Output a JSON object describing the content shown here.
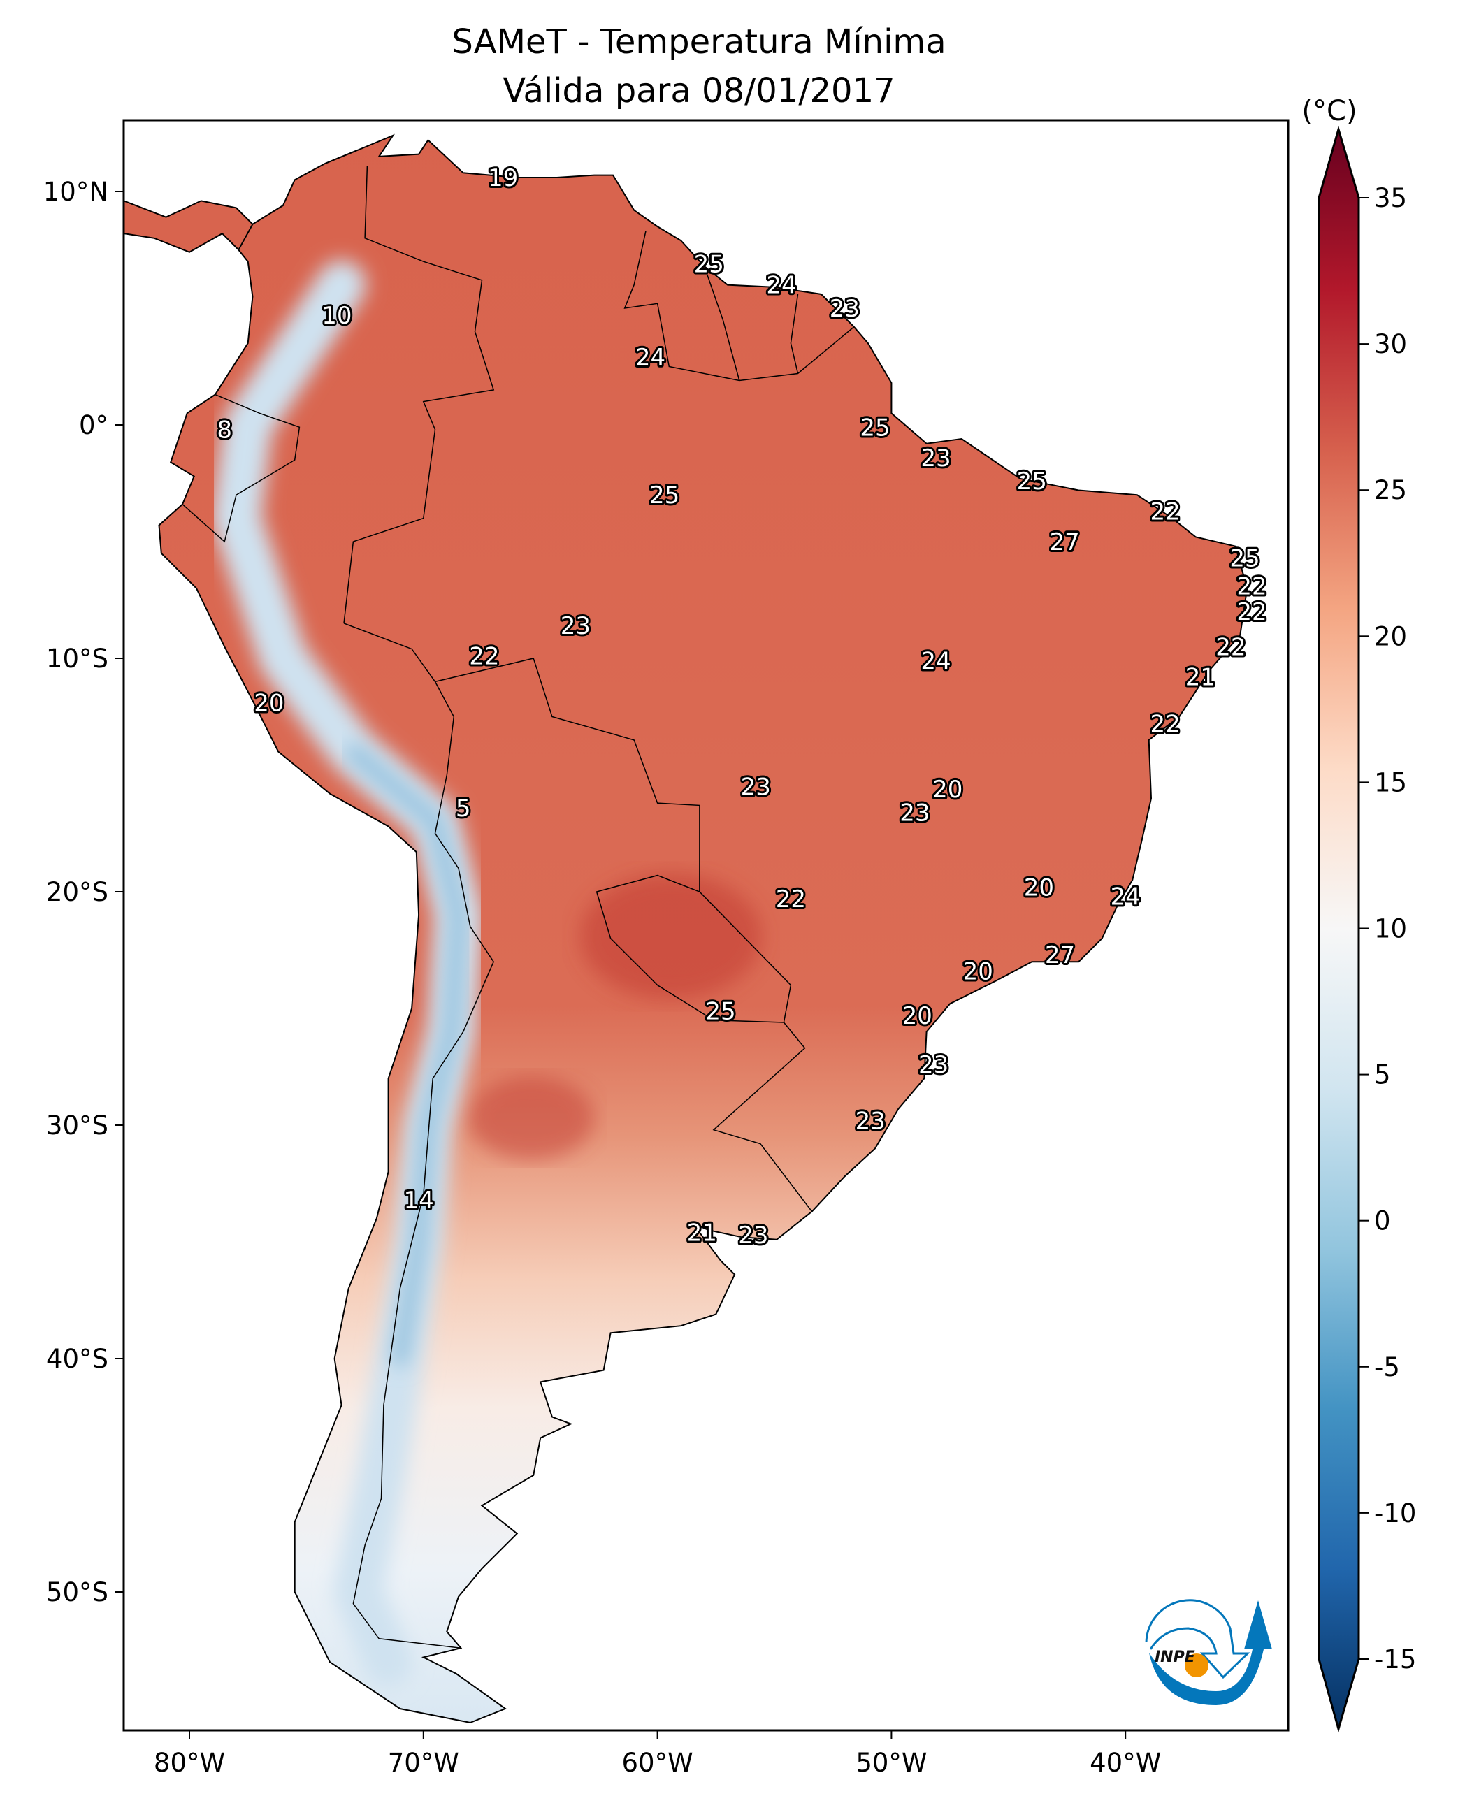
{
  "title": {
    "line1": "SAMeT - Temperatura Mínima",
    "line2": "Válida para 08/01/2017"
  },
  "colorbar": {
    "unit_label": "(°C)",
    "min": -15,
    "max": 35,
    "ticks": [
      "35",
      "30",
      "25",
      "20",
      "15",
      "10",
      "5",
      "0",
      "-5",
      "-10",
      "-15"
    ],
    "colormap": "RdBu_r",
    "extend": "both"
  },
  "axes": {
    "lon_ticks": [
      {
        "value": -80,
        "label": "80°W"
      },
      {
        "value": -70,
        "label": "70°W"
      },
      {
        "value": -60,
        "label": "60°W"
      },
      {
        "value": -50,
        "label": "50°W"
      },
      {
        "value": -40,
        "label": "40°W"
      }
    ],
    "lat_ticks": [
      {
        "value": 10,
        "label": "10°N"
      },
      {
        "value": 0,
        "label": "0°"
      },
      {
        "value": -10,
        "label": "10°S"
      },
      {
        "value": -20,
        "label": "20°S"
      },
      {
        "value": -30,
        "label": "30°S"
      },
      {
        "value": -40,
        "label": "40°S"
      },
      {
        "value": -50,
        "label": "50°S"
      }
    ],
    "lon_range": [
      -82.8,
      -33.0
    ],
    "lat_range": [
      -55.9,
      13.0
    ]
  },
  "logo": {
    "text": "INPE",
    "colors": {
      "blue": "#0477bb",
      "orange": "#f29400"
    }
  },
  "station_labels": [
    {
      "v": "19",
      "lon": -66.6,
      "lat": 10.6
    },
    {
      "v": "25",
      "lon": -57.8,
      "lat": 6.9
    },
    {
      "v": "24",
      "lon": -54.7,
      "lat": 6.0
    },
    {
      "v": "23",
      "lon": -52.0,
      "lat": 5.0
    },
    {
      "v": "10",
      "lon": -73.7,
      "lat": 4.7
    },
    {
      "v": "24",
      "lon": -60.3,
      "lat": 2.9
    },
    {
      "v": "8",
      "lon": -78.5,
      "lat": -0.2
    },
    {
      "v": "25",
      "lon": -50.7,
      "lat": -0.1
    },
    {
      "v": "23",
      "lon": -48.1,
      "lat": -1.4
    },
    {
      "v": "25",
      "lon": -44.0,
      "lat": -2.4
    },
    {
      "v": "25",
      "lon": -59.7,
      "lat": -3.0
    },
    {
      "v": "22",
      "lon": -38.3,
      "lat": -3.7
    },
    {
      "v": "27",
      "lon": -42.6,
      "lat": -5.0
    },
    {
      "v": "25",
      "lon": -34.9,
      "lat": -5.7
    },
    {
      "v": "22",
      "lon": -34.6,
      "lat": -6.9
    },
    {
      "v": "22",
      "lon": -34.6,
      "lat": -8.0
    },
    {
      "v": "23",
      "lon": -63.5,
      "lat": -8.6
    },
    {
      "v": "22",
      "lon": -35.5,
      "lat": -9.5
    },
    {
      "v": "22",
      "lon": -67.4,
      "lat": -9.9
    },
    {
      "v": "24",
      "lon": -48.1,
      "lat": -10.1
    },
    {
      "v": "21",
      "lon": -36.8,
      "lat": -10.8
    },
    {
      "v": "20",
      "lon": -76.6,
      "lat": -11.9
    },
    {
      "v": "22",
      "lon": -38.3,
      "lat": -12.8
    },
    {
      "v": "23",
      "lon": -55.8,
      "lat": -15.5
    },
    {
      "v": "20",
      "lon": -47.6,
      "lat": -15.6
    },
    {
      "v": "5",
      "lon": -68.3,
      "lat": -16.4
    },
    {
      "v": "23",
      "lon": -49.0,
      "lat": -16.6
    },
    {
      "v": "20",
      "lon": -43.7,
      "lat": -19.8
    },
    {
      "v": "24",
      "lon": -40.0,
      "lat": -20.2
    },
    {
      "v": "22",
      "lon": -54.3,
      "lat": -20.3
    },
    {
      "v": "27",
      "lon": -42.8,
      "lat": -22.7
    },
    {
      "v": "20",
      "lon": -46.3,
      "lat": -23.4
    },
    {
      "v": "25",
      "lon": -57.3,
      "lat": -25.1
    },
    {
      "v": "20",
      "lon": -48.9,
      "lat": -25.3
    },
    {
      "v": "23",
      "lon": -48.2,
      "lat": -27.4
    },
    {
      "v": "23",
      "lon": -50.9,
      "lat": -29.8
    },
    {
      "v": "14",
      "lon": -70.2,
      "lat": -33.2
    },
    {
      "v": "21",
      "lon": -58.1,
      "lat": -34.6
    },
    {
      "v": "23",
      "lon": -55.9,
      "lat": -34.7
    }
  ]
}
